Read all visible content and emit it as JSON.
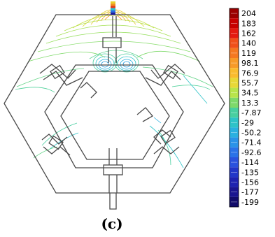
{
  "figure": {
    "caption": "(c)",
    "colorbar": {
      "ticks": [
        "204",
        "183",
        "162",
        "140",
        "119",
        "98.1",
        "76.9",
        "55.7",
        "34.5",
        "13.3",
        "-7.87",
        "-29",
        "-50.2",
        "-71.4",
        "-92.6",
        "-114",
        "-135",
        "-156",
        "-177",
        "-199"
      ],
      "colors": [
        "#9b0000",
        "#c80000",
        "#e41a10",
        "#f0501a",
        "#f47820",
        "#f79a27",
        "#fabb2e",
        "#e8d836",
        "#b8e44a",
        "#7ed96a",
        "#48cfa0",
        "#2ec3c8",
        "#2ab0e0",
        "#2a93e8",
        "#2a72e8",
        "#2a52de",
        "#2236c8",
        "#1e22b0",
        "#1a1590",
        "#120c6a"
      ]
    },
    "source_marker_colors": [
      "#e8d02a",
      "#f0901e",
      "#e23a18",
      "#28c4d8",
      "#2a6ae0",
      "#1e1e9a"
    ]
  }
}
